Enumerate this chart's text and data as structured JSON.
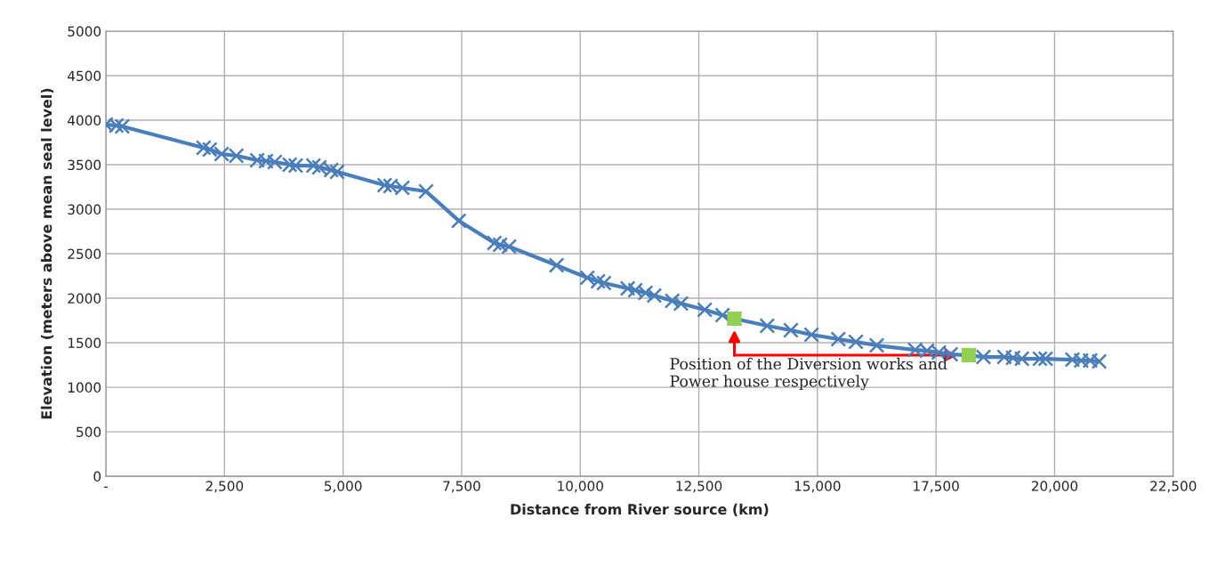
{
  "chart_data": {
    "type": "line",
    "xlabel": "Distance from River source (km)",
    "ylabel": "Elevation (meters above mean seal level)",
    "xlim": [
      0,
      22500
    ],
    "xticks": [
      {
        "value": 0,
        "label": "-"
      },
      {
        "value": 2500,
        "label": "2,500"
      },
      {
        "value": 5000,
        "label": "5,000"
      },
      {
        "value": 7500,
        "label": "7,500"
      },
      {
        "value": 10000,
        "label": "10,000"
      },
      {
        "value": 12500,
        "label": "12,500"
      },
      {
        "value": 15000,
        "label": "15,000"
      },
      {
        "value": 17500,
        "label": "17,500"
      },
      {
        "value": 20000,
        "label": "20,000"
      },
      {
        "value": 22500,
        "label": "22,500"
      }
    ],
    "ylim": [
      0,
      5000
    ],
    "yticks": [
      0,
      500,
      1000,
      1500,
      2000,
      2500,
      3000,
      3500,
      4000,
      4500,
      5000
    ],
    "grid": true,
    "legend": false,
    "marker": "cross",
    "line_style": "solid",
    "series": [
      {
        "color": "#4a7ebb",
        "x": [
          0,
          220,
          345,
          2060,
          2190,
          2440,
          2750,
          3190,
          3375,
          3560,
          3875,
          4000,
          4375,
          4500,
          4750,
          4875,
          5875,
          6000,
          6250,
          6750,
          7440,
          8190,
          8310,
          8500,
          9500,
          10150,
          10375,
          10500,
          11000,
          11160,
          11375,
          11560,
          11940,
          12125,
          12625,
          13000,
          13250,
          13940,
          14440,
          14875,
          15440,
          15810,
          16250,
          17060,
          17310,
          17560,
          17810,
          18190,
          18500,
          18940,
          19125,
          19310,
          19690,
          19810,
          20375,
          20560,
          20750,
          20940
        ],
        "values": [
          3950,
          3940,
          3930,
          3690,
          3670,
          3620,
          3600,
          3550,
          3540,
          3530,
          3500,
          3490,
          3490,
          3470,
          3440,
          3420,
          3270,
          3260,
          3240,
          3200,
          2870,
          2620,
          2600,
          2580,
          2370,
          2230,
          2190,
          2170,
          2110,
          2090,
          2060,
          2030,
          1970,
          1940,
          1870,
          1810,
          1770,
          1690,
          1640,
          1590,
          1540,
          1510,
          1470,
          1420,
          1410,
          1390,
          1370,
          1360,
          1340,
          1340,
          1330,
          1320,
          1320,
          1320,
          1310,
          1300,
          1300,
          1290
        ]
      },
      {
        "type": "scatter",
        "color": "#92d050",
        "marker": "square",
        "x": [
          13250,
          18190
        ],
        "values": [
          1770,
          1360
        ]
      }
    ],
    "annotations": [
      "Position of the Diversion works and\nPower house respectively"
    ]
  }
}
